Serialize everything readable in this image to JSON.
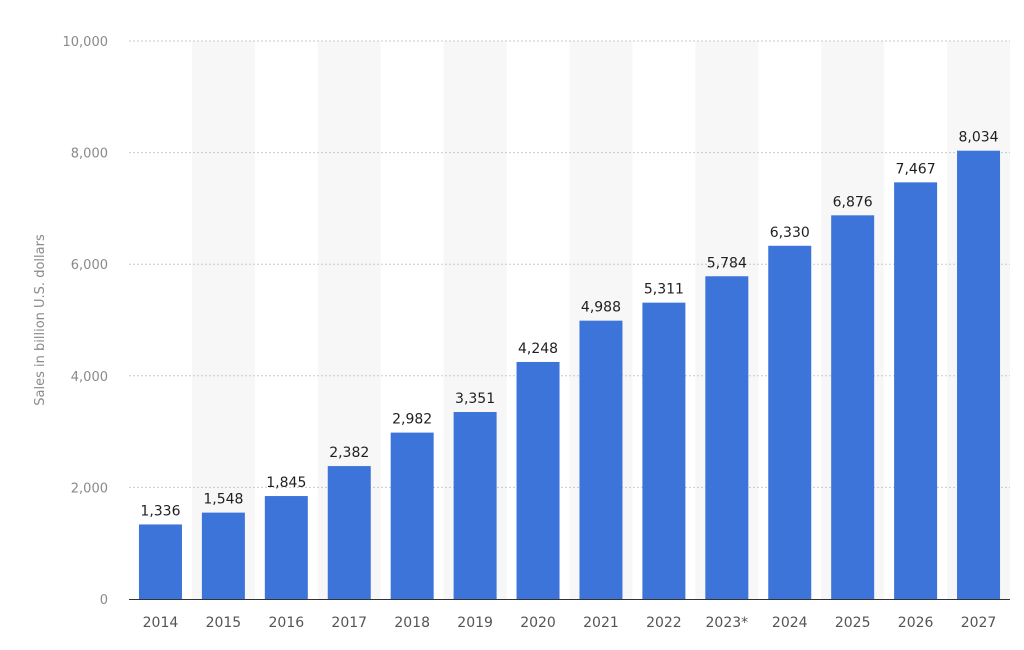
{
  "chart_data": {
    "type": "bar",
    "title": "",
    "xlabel": "",
    "ylabel": "Sales in billion U.S. dollars",
    "categories": [
      "2014",
      "2015",
      "2016",
      "2017",
      "2018",
      "2019",
      "2020",
      "2021",
      "2022",
      "2023*",
      "2024",
      "2025",
      "2026",
      "2027"
    ],
    "values": [
      1336,
      1548,
      1845,
      2382,
      2982,
      3351,
      4248,
      4988,
      5311,
      5784,
      6330,
      6876,
      7467,
      8034
    ],
    "value_labels": [
      "1,336",
      "1,548",
      "1,845",
      "2,382",
      "2,982",
      "3,351",
      "4,248",
      "4,988",
      "5,311",
      "5,784",
      "6,330",
      "6,876",
      "7,467",
      "8,034"
    ],
    "ylim": [
      0,
      10000
    ],
    "yticks": [
      0,
      2000,
      4000,
      6000,
      8000,
      10000
    ],
    "ytick_labels": [
      "0",
      "2,000",
      "4,000",
      "6,000",
      "8,000",
      "10,000"
    ],
    "grid": true,
    "colors": {
      "bar": "#3d74d9",
      "alternate_band": "#f7f7f7",
      "grid": "#c9c9c9",
      "axis": "#333333"
    }
  }
}
